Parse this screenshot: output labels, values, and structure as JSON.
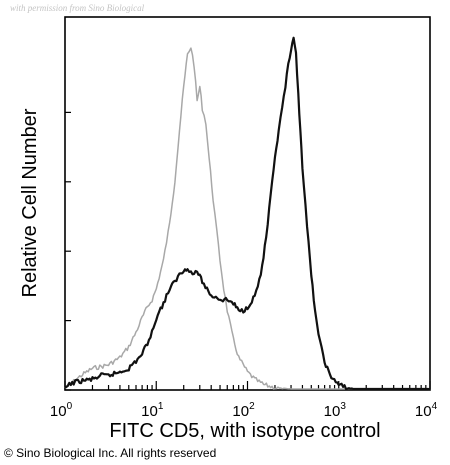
{
  "watermark": "with permission from Sino Biological",
  "copyright": "© Sino Biological Inc. All rights reserved",
  "chart_data": {
    "type": "line",
    "xlabel": "FITC CD5, with isotype control",
    "ylabel": "Relative Cell Number",
    "x_scale": "log",
    "xlim": [
      1,
      10000
    ],
    "x_ticks": [
      {
        "value": 1,
        "base": "10",
        "exp": "0"
      },
      {
        "value": 10,
        "base": "10",
        "exp": "1"
      },
      {
        "value": 100,
        "base": "10",
        "exp": "2"
      },
      {
        "value": 1000,
        "base": "10",
        "exp": "3"
      },
      {
        "value": 10000,
        "base": "10",
        "exp": "4"
      }
    ],
    "ylim": [
      0,
      100
    ],
    "y_ticks": [
      0,
      20,
      40,
      60,
      80
    ],
    "y_tick_labels": false,
    "grid": false,
    "series": [
      {
        "style": "isotype-control",
        "color": "#a8a8a8",
        "x": [
          1.0,
          1.2,
          1.5,
          2.0,
          2.5,
          3.0,
          4.0,
          5.0,
          6.0,
          7.0,
          8.0,
          9.0,
          10.0,
          12.0,
          14.0,
          16.0,
          18.0,
          20.0,
          22.0,
          24.0,
          26.0,
          28.0,
          30.0,
          32.0,
          35.0,
          38.0,
          42.0,
          46.0,
          50.0,
          55.0,
          60.0,
          70.0,
          80.0,
          100.0,
          120.0,
          150.0,
          200.0,
          300.0,
          500.0,
          1000.0,
          10000.0
        ],
        "y": [
          0.5,
          2.0,
          4.0,
          6.0,
          6.5,
          7.0,
          9.0,
          12.0,
          16.0,
          20.0,
          23.0,
          25.0,
          28.0,
          36.0,
          46.0,
          58.0,
          72.0,
          84.0,
          93.0,
          95.0,
          90.0,
          80.0,
          84.0,
          78.0,
          74.0,
          64.0,
          53.0,
          44.0,
          36.0,
          28.0,
          22.0,
          14.0,
          9.0,
          5.0,
          3.0,
          1.5,
          0.6,
          0.2,
          0.1,
          0.0,
          0.0
        ]
      },
      {
        "style": "FITC CD5",
        "color": "#111111",
        "x": [
          1.0,
          1.2,
          1.5,
          2.0,
          2.5,
          3.0,
          4.0,
          5.0,
          6.0,
          7.0,
          8.0,
          9.0,
          10.0,
          12.0,
          14.0,
          16.0,
          18.0,
          20.0,
          22.0,
          25.0,
          28.0,
          32.0,
          36.0,
          40.0,
          45.0,
          50.0,
          60.0,
          70.0,
          80.0,
          90.0,
          100.0,
          120.0,
          140.0,
          160.0,
          180.0,
          200.0,
          220.0,
          240.0,
          260.0,
          280.0,
          300.0,
          320.0,
          340.0,
          360.0,
          380.0,
          400.0,
          450.0,
          500.0,
          550.0,
          600.0,
          700.0,
          800.0,
          1000.0,
          1200.0,
          1500.0,
          2000.0,
          10000.0
        ],
        "y": [
          0.5,
          2.0,
          2.5,
          3.0,
          4.0,
          4.0,
          5.0,
          6.0,
          8.0,
          10.0,
          13.0,
          16.0,
          20.0,
          24.0,
          28.0,
          30.0,
          32.0,
          33.0,
          34.0,
          32.0,
          33.0,
          30.0,
          28.0,
          26.0,
          26.0,
          25.0,
          25.0,
          24.0,
          22.0,
          22.0,
          23.0,
          26.0,
          32.0,
          42.0,
          54.0,
          64.0,
          72.0,
          78.0,
          84.0,
          90.0,
          94.0,
          97.0,
          93.0,
          82.0,
          72.0,
          62.0,
          45.0,
          32.0,
          22.0,
          15.0,
          8.0,
          4.0,
          1.5,
          0.6,
          0.2,
          0.0,
          0.0
        ]
      }
    ]
  }
}
